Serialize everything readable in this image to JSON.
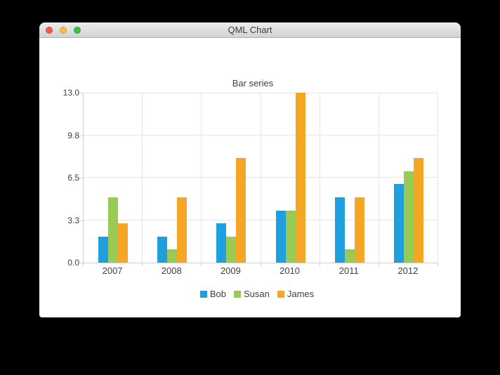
{
  "window": {
    "title": "QML Chart",
    "controls": {
      "close_color": "#fc5753",
      "minimize_color": "#fdbc40",
      "zoom_color": "#33c748"
    }
  },
  "chart_data": {
    "type": "bar",
    "title": "Bar series",
    "categories": [
      "2007",
      "2008",
      "2009",
      "2010",
      "2011",
      "2012"
    ],
    "series": [
      {
        "name": "Bob",
        "color": "#209fdf",
        "values": [
          2,
          2,
          3,
          4,
          5,
          6
        ]
      },
      {
        "name": "Susan",
        "color": "#99ca53",
        "values": [
          5,
          1,
          2,
          4,
          1,
          7
        ]
      },
      {
        "name": "James",
        "color": "#f6a625",
        "values": [
          3,
          5,
          8,
          13,
          5,
          8
        ]
      }
    ],
    "ylim": [
      0,
      13
    ],
    "y_tick_labels": [
      "0.0",
      "3.3",
      "6.5",
      "9.8",
      "13.0"
    ],
    "xlabel": "",
    "ylabel": "",
    "grid": true,
    "legend_position": "bottom"
  },
  "colors": {
    "grid": "#e6e6e6",
    "axis": "#cfcfcf",
    "text": "#404040",
    "window_background": "#ffffff",
    "desktop_background": "#000000"
  }
}
